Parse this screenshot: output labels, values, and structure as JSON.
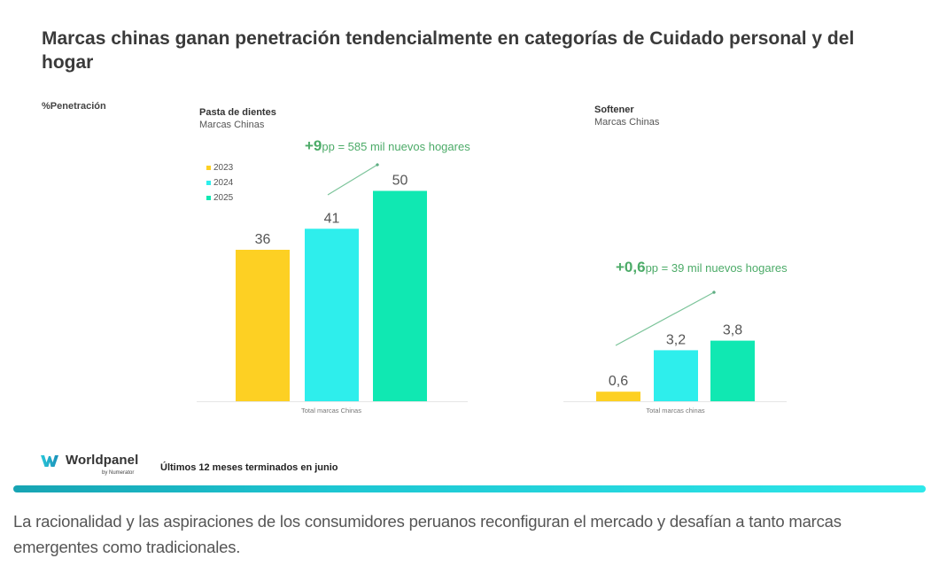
{
  "title": "Marcas chinas ganan penetración tendencialmente en categorías de Cuidado personal y del hogar",
  "ylabel": "%Penetración",
  "colors": {
    "y2023": "#fdd023",
    "y2024": "#2eeeec",
    "y2025": "#10e8b2",
    "annotation": "#4cab68",
    "divider_start": "#17a4b3",
    "divider_end": "#2ee8ea"
  },
  "legend": [
    {
      "label": "2023",
      "color": "#fdd023"
    },
    {
      "label": "2024",
      "color": "#2eeeec"
    },
    {
      "label": "2025",
      "color": "#10e8b2"
    }
  ],
  "chart_data": [
    {
      "type": "bar",
      "title": "Pasta de dientes",
      "subtitle": "Marcas Chinas",
      "categories": [
        "Total marcas Chinas"
      ],
      "xlabel": "Total marcas Chinas",
      "ylabel": "%Penetración",
      "series": [
        {
          "name": "2023",
          "values": [
            36
          ],
          "label": "36"
        },
        {
          "name": "2024",
          "values": [
            41
          ],
          "label": "41"
        },
        {
          "name": "2025",
          "values": [
            50
          ],
          "label": "50"
        }
      ],
      "ylim": [
        0,
        56
      ],
      "grid": false,
      "legend": "top-left",
      "annotation": {
        "big": "+9",
        "rest": "pp = 585 mil nuevos hogares"
      }
    },
    {
      "type": "bar",
      "title": "Softener",
      "subtitle": "Marcas Chinas",
      "categories": [
        "Total marcas chinas"
      ],
      "xlabel": "Total marcas chinas",
      "ylabel": "%Penetración",
      "series": [
        {
          "name": "2023",
          "values": [
            0.6
          ],
          "label": "0,6"
        },
        {
          "name": "2024",
          "values": [
            3.2
          ],
          "label": "3,2"
        },
        {
          "name": "2025",
          "values": [
            3.8
          ],
          "label": "3,8"
        }
      ],
      "ylim": [
        0,
        10
      ],
      "grid": false,
      "annotation": {
        "big": "+0,6",
        "rest": "pp = 39 mil nuevos hogares"
      }
    }
  ],
  "footer": {
    "brand": "Worldpanel",
    "brand_sub": "by Numerator",
    "period": "Últimos 12 meses terminados en junio"
  },
  "caption": "La racionalidad y las aspiraciones de los consumidores peruanos reconfiguran el mercado y desafían a tanto marcas emergentes como tradicionales."
}
